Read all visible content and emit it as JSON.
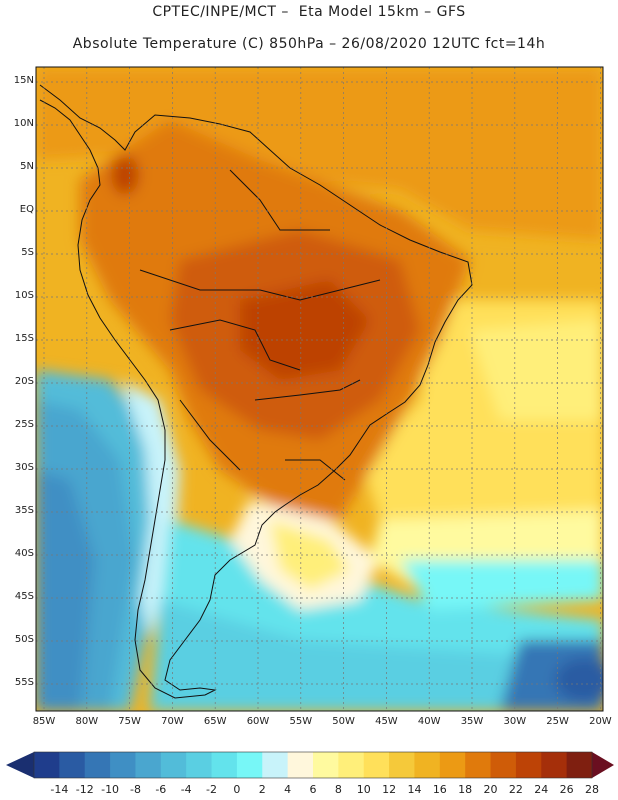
{
  "title": {
    "line1": "CPTEC/INPE/MCT –  Eta Model 15km – GFS",
    "line2": "Absolute Temperature (C) 850hPa – 26/08/2020 12UTC fct=14h"
  },
  "lat_ticks": [
    "15N",
    "10N",
    "5N",
    "EQ",
    "5S",
    "10S",
    "15S",
    "20S",
    "25S",
    "30S",
    "35S",
    "40S",
    "45S",
    "50S",
    "55S"
  ],
  "lon_ticks": [
    "85W",
    "80W",
    "75W",
    "70W",
    "65W",
    "60W",
    "55W",
    "50W",
    "45W",
    "40W",
    "35W",
    "30W",
    "25W",
    "20W"
  ],
  "colorbar": {
    "labels": [
      "-14",
      "-12",
      "-10",
      "-8",
      "-6",
      "-4",
      "-2",
      "0",
      "2",
      "4",
      "6",
      "8",
      "10",
      "12",
      "14",
      "16",
      "18",
      "20",
      "22",
      "24",
      "26",
      "28"
    ],
    "colors": [
      "#1f3d8c",
      "#2a5ba3",
      "#3576b5",
      "#3f8fc4",
      "#4aa6cf",
      "#52bcd9",
      "#5acfe2",
      "#63e3ec",
      "#77f7f7",
      "#c8f3fa",
      "#fff7dc",
      "#fffa9f",
      "#ffef7a",
      "#ffe05a",
      "#f5c93a",
      "#f0b322",
      "#ec9a14",
      "#e07a0c",
      "#cf5c08",
      "#bd4306",
      "#a52f0a",
      "#7f1f10"
    ]
  }
}
